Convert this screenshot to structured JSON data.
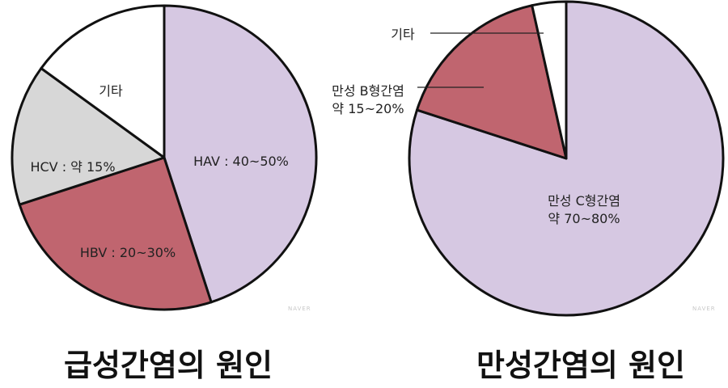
{
  "chart_data": [
    {
      "type": "pie",
      "title": "급성간염의 원인",
      "slices": [
        {
          "label": "HAV : 40~50%",
          "value": 45,
          "color": "#d6c8e2"
        },
        {
          "label": "HBV : 20~30%",
          "value": 25,
          "color": "#c0656f"
        },
        {
          "label": "HCV : 약 15%",
          "value": 15,
          "color": "#d7d7d7"
        },
        {
          "label": "기타",
          "value": 15,
          "color": "#ffffff"
        }
      ],
      "watermark": "NAVER"
    },
    {
      "type": "pie",
      "title": "만성간염의 원인",
      "slices": [
        {
          "label": [
            "만성  C형간염",
            "약 70~80%"
          ],
          "value": 80,
          "color": "#d6c8e2"
        },
        {
          "label": [
            "만성 B형간염",
            "약 15~20%"
          ],
          "value": 16.5,
          "color": "#c0656f"
        },
        {
          "label": "기타",
          "value": 3.5,
          "color": "#ffffff"
        }
      ],
      "watermark": "NAVER"
    }
  ]
}
